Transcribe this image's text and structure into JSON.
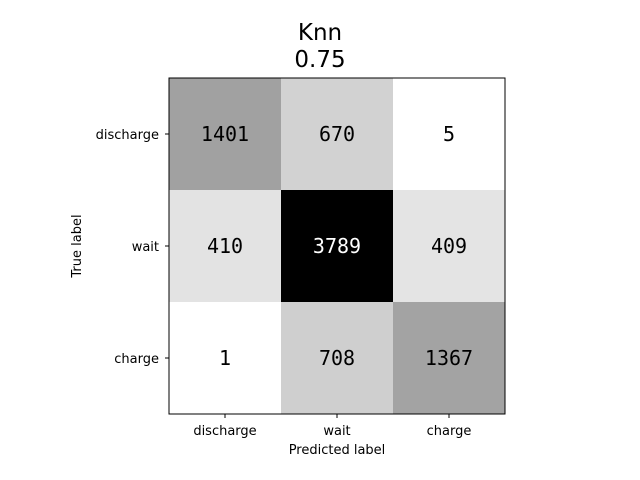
{
  "chart_data": {
    "type": "heatmap",
    "title": "Knn",
    "subtitle": "0.75",
    "xlabel": "Predicted label",
    "ylabel": "True label",
    "x_categories": [
      "discharge",
      "wait",
      "charge"
    ],
    "y_categories": [
      "discharge",
      "wait",
      "charge"
    ],
    "values": [
      [
        1401,
        670,
        5
      ],
      [
        410,
        3789,
        409
      ],
      [
        1,
        708,
        1367
      ]
    ],
    "colormap": "Greys",
    "color_range": [
      1,
      3789
    ],
    "grid": false,
    "legend": "none"
  }
}
